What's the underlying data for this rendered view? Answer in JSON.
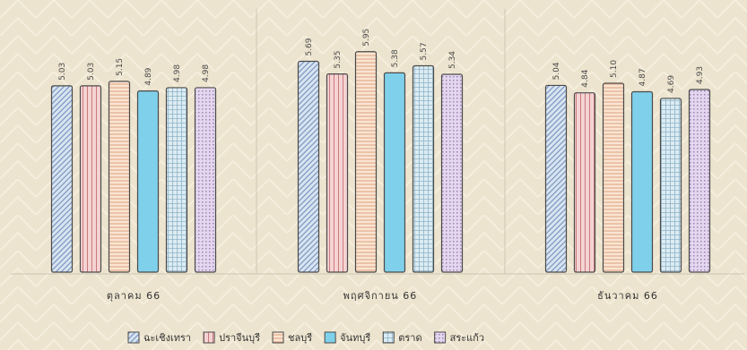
{
  "chart_data": {
    "type": "bar",
    "categories": [
      "ตุลาคม 66",
      "พฤศจิกายน 66",
      "ธันวาคม 66"
    ],
    "series": [
      {
        "name": "ฉะเชิงเทรา",
        "values": [
          5.03,
          5.69,
          5.04
        ],
        "color": "#d8e4f0",
        "stroke": "#7d97c2",
        "pattern": "diag"
      },
      {
        "name": "ปราจีนบุรี",
        "values": [
          5.03,
          5.35,
          4.84
        ],
        "color": "#f5d3d3",
        "stroke": "#c97b7b",
        "pattern": "vert"
      },
      {
        "name": "ชลบุรี",
        "values": [
          5.15,
          5.95,
          5.1
        ],
        "color": "#fbe4d2",
        "stroke": "#d9a27d",
        "pattern": "horiz"
      },
      {
        "name": "จันทบุรี",
        "values": [
          4.89,
          5.38,
          4.87
        ],
        "color": "#7fd0ea",
        "stroke": "#5aa9c4",
        "pattern": "solid"
      },
      {
        "name": "ตราด",
        "values": [
          4.98,
          5.57,
          4.69
        ],
        "color": "#dcecf3",
        "stroke": "#8fb3c6",
        "pattern": "grid"
      },
      {
        "name": "สระแก้ว",
        "values": [
          4.98,
          5.34,
          4.93
        ],
        "color": "#e4d6ee",
        "stroke": "#9d84b8",
        "pattern": "dots"
      }
    ],
    "ylim": [
      0,
      7
    ],
    "grid": false,
    "legend": "bottom"
  }
}
